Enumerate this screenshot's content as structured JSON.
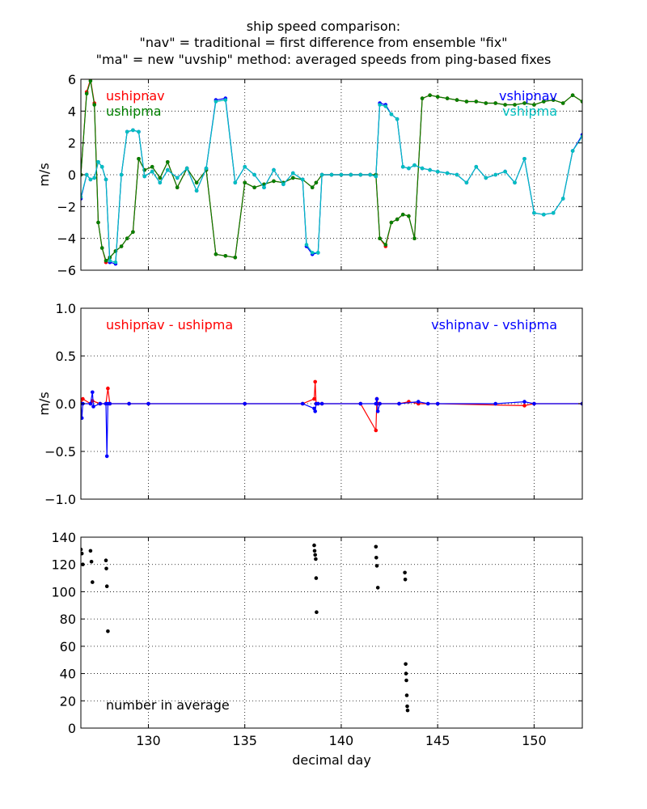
{
  "title_lines": [
    "ship speed comparison:",
    "\"nav\" = traditional = first difference from ensemble \"fix\"",
    "\"ma\" = new \"uvship\" method: averaged speeds from ping-based fixes"
  ],
  "xlabel": "decimal day",
  "colors": {
    "red": "#ff0000",
    "green": "#008000",
    "blue": "#0000ff",
    "cyan": "#00bfbf",
    "black": "#000000"
  },
  "chart_data": [
    {
      "type": "line",
      "ylabel": "m/s",
      "xlim": [
        126.5,
        152.5
      ],
      "ylim": [
        -6,
        6
      ],
      "xticks": [
        130,
        135,
        140,
        145,
        150
      ],
      "yticks": [
        -6,
        -4,
        -2,
        0,
        2,
        4,
        6
      ],
      "ytick_labels": [
        "−6",
        "−4",
        "−2",
        "0",
        "2",
        "4",
        "6"
      ],
      "grid": true,
      "annotations": [
        {
          "text": "ushipnav",
          "color": "#ff0000",
          "pos": "top-left"
        },
        {
          "text": "ushipma",
          "color": "#008000",
          "pos": "top-left"
        },
        {
          "text": "vshipnav",
          "color": "#0000ff",
          "pos": "top-right"
        },
        {
          "text": "vshipma",
          "color": "#00bfbf",
          "pos": "top-right"
        }
      ],
      "series": [
        {
          "name": "ushipnav",
          "color": "#ff0000",
          "x": [
            126.5,
            126.8,
            127.0,
            127.2,
            127.4,
            127.6,
            127.8,
            128.0,
            128.3,
            128.6,
            128.9,
            129.2,
            129.5,
            129.8,
            130.2,
            130.6,
            131.0,
            131.5,
            132.0,
            132.5,
            133.0,
            133.5,
            134.0,
            134.5,
            135.0,
            135.5,
            136.0,
            136.5,
            137.0,
            137.5,
            138.0,
            138.5,
            138.7,
            139.0,
            139.5,
            140.0,
            140.5,
            141.0,
            141.5,
            141.8,
            142.0,
            142.3,
            142.6,
            142.9,
            143.2,
            143.5,
            143.8,
            144.2,
            144.6,
            145.0,
            145.5,
            146.0,
            146.5,
            147.0,
            147.5,
            148.0,
            148.5,
            149.0,
            149.5,
            150.0,
            150.5,
            151.0,
            151.5,
            152.0,
            152.5
          ],
          "y": [
            0.0,
            5.2,
            6.0,
            4.5,
            -3.0,
            -4.6,
            -5.5,
            -5.2,
            -4.8,
            -4.5,
            -4.0,
            -3.6,
            1.0,
            0.3,
            0.5,
            -0.2,
            0.8,
            -0.8,
            0.4,
            -0.5,
            0.3,
            -5.0,
            -5.1,
            -5.2,
            -0.5,
            -0.8,
            -0.6,
            -0.4,
            -0.5,
            -0.2,
            -0.3,
            -0.8,
            -0.5,
            0.0,
            0.0,
            0.0,
            0.0,
            0.0,
            0.0,
            0.0,
            -4.0,
            -4.5,
            -3.0,
            -2.8,
            -2.5,
            -2.6,
            -4.0,
            4.8,
            5.0,
            4.9,
            4.8,
            4.7,
            4.6,
            4.6,
            4.5,
            4.5,
            4.4,
            4.4,
            4.5,
            4.4,
            4.6,
            4.7,
            4.5,
            5.0,
            4.6
          ]
        },
        {
          "name": "ushipma",
          "color": "#008000",
          "x": [
            126.5,
            126.8,
            127.0,
            127.2,
            127.4,
            127.6,
            127.8,
            128.0,
            128.3,
            128.6,
            128.9,
            129.2,
            129.5,
            129.8,
            130.2,
            130.6,
            131.0,
            131.5,
            132.0,
            132.5,
            133.0,
            133.5,
            134.0,
            134.5,
            135.0,
            135.5,
            136.0,
            136.5,
            137.0,
            137.5,
            138.0,
            138.5,
            138.7,
            139.0,
            139.5,
            140.0,
            140.5,
            141.0,
            141.5,
            141.8,
            142.0,
            142.3,
            142.6,
            142.9,
            143.2,
            143.5,
            143.8,
            144.2,
            144.6,
            145.0,
            145.5,
            146.0,
            146.5,
            147.0,
            147.5,
            148.0,
            148.5,
            149.0,
            149.5,
            150.0,
            150.5,
            151.0,
            151.5,
            152.0,
            152.5
          ],
          "y": [
            0.0,
            5.1,
            5.9,
            4.4,
            -3.0,
            -4.6,
            -5.4,
            -5.2,
            -4.8,
            -4.5,
            -4.0,
            -3.6,
            1.0,
            0.3,
            0.5,
            -0.2,
            0.8,
            -0.8,
            0.4,
            -0.5,
            0.3,
            -5.0,
            -5.1,
            -5.2,
            -0.5,
            -0.8,
            -0.6,
            -0.4,
            -0.5,
            -0.2,
            -0.3,
            -0.8,
            -0.5,
            0.0,
            0.0,
            0.0,
            0.0,
            0.0,
            0.0,
            0.0,
            -4.0,
            -4.4,
            -3.0,
            -2.8,
            -2.5,
            -2.6,
            -4.0,
            4.8,
            5.0,
            4.9,
            4.8,
            4.7,
            4.6,
            4.6,
            4.5,
            4.5,
            4.4,
            4.4,
            4.5,
            4.4,
            4.6,
            4.7,
            4.5,
            5.0,
            4.6
          ]
        },
        {
          "name": "vshipnav",
          "color": "#0000ff",
          "x": [
            126.5,
            126.8,
            127.0,
            127.2,
            127.4,
            127.6,
            127.8,
            128.0,
            128.3,
            128.6,
            128.9,
            129.2,
            129.5,
            129.8,
            130.2,
            130.6,
            131.0,
            131.5,
            132.0,
            132.5,
            133.0,
            133.5,
            134.0,
            134.5,
            135.0,
            135.5,
            136.0,
            136.5,
            137.0,
            137.5,
            138.0,
            138.2,
            138.5,
            138.8,
            139.0,
            139.5,
            140.0,
            140.5,
            141.0,
            141.5,
            141.8,
            142.0,
            142.3,
            142.6,
            142.9,
            143.2,
            143.5,
            143.8,
            144.2,
            144.6,
            145.0,
            145.5,
            146.0,
            146.5,
            147.0,
            147.5,
            148.0,
            148.5,
            149.0,
            149.5,
            150.0,
            150.5,
            151.0,
            151.5,
            152.0,
            152.5
          ],
          "y": [
            -1.5,
            0.0,
            -0.3,
            -0.2,
            0.8,
            0.5,
            -0.3,
            -5.5,
            -5.6,
            0.0,
            2.7,
            2.8,
            2.7,
            -0.1,
            0.2,
            -0.5,
            0.3,
            -0.2,
            0.4,
            -1.0,
            0.4,
            4.7,
            4.8,
            -0.5,
            0.5,
            0.0,
            -0.8,
            0.3,
            -0.6,
            0.1,
            -0.3,
            -4.5,
            -5.0,
            -4.9,
            0.0,
            0.0,
            0.0,
            0.0,
            0.0,
            0.0,
            -0.1,
            4.5,
            4.4,
            3.8,
            3.5,
            0.5,
            0.4,
            0.6,
            0.4,
            0.3,
            0.2,
            0.1,
            0.0,
            -0.5,
            0.5,
            -0.2,
            0.0,
            0.2,
            -0.5,
            1.0,
            -2.4,
            -2.5,
            -2.4,
            -1.5,
            1.5,
            2.5
          ]
        },
        {
          "name": "vshipma",
          "color": "#00bfbf",
          "x": [
            126.5,
            126.8,
            127.0,
            127.2,
            127.4,
            127.6,
            127.8,
            128.0,
            128.3,
            128.6,
            128.9,
            129.2,
            129.5,
            129.8,
            130.2,
            130.6,
            131.0,
            131.5,
            132.0,
            132.5,
            133.0,
            133.5,
            134.0,
            134.5,
            135.0,
            135.5,
            136.0,
            136.5,
            137.0,
            137.5,
            138.0,
            138.2,
            138.5,
            138.8,
            139.0,
            139.5,
            140.0,
            140.5,
            141.0,
            141.5,
            141.8,
            142.0,
            142.3,
            142.6,
            142.9,
            143.2,
            143.5,
            143.8,
            144.2,
            144.6,
            145.0,
            145.5,
            146.0,
            146.5,
            147.0,
            147.5,
            148.0,
            148.5,
            149.0,
            149.5,
            150.0,
            150.5,
            151.0,
            151.5,
            152.0,
            152.5
          ],
          "y": [
            -1.4,
            0.0,
            -0.3,
            -0.2,
            0.8,
            0.5,
            -0.3,
            -5.4,
            -5.5,
            0.0,
            2.7,
            2.8,
            2.7,
            -0.1,
            0.2,
            -0.5,
            0.3,
            -0.2,
            0.4,
            -1.0,
            0.4,
            4.6,
            4.7,
            -0.5,
            0.5,
            0.0,
            -0.8,
            0.3,
            -0.6,
            0.1,
            -0.3,
            -4.4,
            -4.9,
            -4.9,
            0.0,
            0.0,
            0.0,
            0.0,
            0.0,
            0.0,
            -0.1,
            4.4,
            4.3,
            3.8,
            3.5,
            0.5,
            0.4,
            0.6,
            0.4,
            0.3,
            0.2,
            0.1,
            0.0,
            -0.5,
            0.5,
            -0.2,
            0.0,
            0.2,
            -0.5,
            1.0,
            -2.4,
            -2.5,
            -2.4,
            -1.5,
            1.5,
            2.4
          ]
        }
      ]
    },
    {
      "type": "line",
      "ylabel": "m/s",
      "xlim": [
        126.5,
        152.5
      ],
      "ylim": [
        -1.0,
        1.0
      ],
      "xticks": [
        130,
        135,
        140,
        145,
        150
      ],
      "yticks": [
        -1.0,
        -0.5,
        0.0,
        0.5,
        1.0
      ],
      "ytick_labels": [
        "−1.0",
        "−0.5",
        "0.0",
        "0.5",
        "1.0"
      ],
      "grid": true,
      "annotations": [
        {
          "text": "ushipnav - ushipma",
          "color": "#ff0000",
          "pos": "top-left"
        },
        {
          "text": "vshipnav - vshipma",
          "color": "#0000ff",
          "pos": "top-right"
        }
      ],
      "series": [
        {
          "name": "ushipnav - ushipma",
          "color": "#ff0000",
          "x": [
            126.5,
            126.6,
            127.0,
            127.1,
            127.5,
            127.8,
            127.9,
            128.0,
            129.0,
            130.0,
            135.0,
            138.0,
            138.6,
            138.65,
            138.7,
            138.8,
            139.0,
            141.0,
            141.8,
            141.85,
            141.9,
            142.0,
            143.0,
            143.5,
            144.0,
            145.0,
            149.5,
            150.0,
            152.5
          ],
          "y": [
            0.0,
            0.05,
            0.0,
            0.03,
            0.0,
            0.0,
            0.16,
            0.0,
            0.0,
            0.0,
            0.0,
            0.0,
            0.05,
            0.23,
            0.0,
            0.0,
            0.0,
            0.0,
            -0.28,
            0.05,
            0.0,
            0.0,
            0.0,
            0.02,
            0.0,
            0.0,
            -0.02,
            0.0,
            0.0
          ]
        },
        {
          "name": "vshipnav - vshipma",
          "color": "#0000ff",
          "x": [
            126.5,
            126.55,
            126.6,
            127.0,
            127.1,
            127.15,
            127.5,
            127.8,
            127.85,
            127.9,
            128.0,
            129.0,
            130.0,
            135.0,
            138.0,
            138.6,
            138.65,
            138.7,
            138.8,
            139.0,
            141.0,
            141.8,
            141.85,
            141.9,
            142.0,
            143.0,
            144.0,
            144.5,
            145.0,
            148.0,
            149.5,
            150.0,
            152.5
          ],
          "y": [
            0.0,
            -0.15,
            0.0,
            0.0,
            0.12,
            -0.03,
            0.0,
            0.0,
            -0.55,
            0.0,
            0.0,
            0.0,
            0.0,
            0.0,
            0.0,
            -0.05,
            -0.08,
            0.0,
            0.0,
            0.0,
            0.0,
            0.0,
            0.05,
            -0.08,
            0.0,
            0.0,
            0.02,
            0.0,
            0.0,
            0.0,
            0.02,
            0.0,
            0.0
          ]
        }
      ]
    },
    {
      "type": "scatter",
      "ylabel": "",
      "xlim": [
        126.5,
        152.5
      ],
      "ylim": [
        0,
        140
      ],
      "xticks": [
        130,
        135,
        140,
        145,
        150
      ],
      "yticks": [
        0,
        20,
        40,
        60,
        80,
        100,
        120,
        140
      ],
      "ytick_labels": [
        "0",
        "20",
        "40",
        "60",
        "80",
        "100",
        "120",
        "140"
      ],
      "grid": true,
      "annotations": [
        {
          "text": "number in average",
          "color": "#000000",
          "pos": "bottom-left"
        }
      ],
      "series": [
        {
          "name": "number in average",
          "color": "#000000",
          "x": [
            126.5,
            126.55,
            126.6,
            127.0,
            127.05,
            127.1,
            127.8,
            127.82,
            127.85,
            127.9,
            138.6,
            138.62,
            138.65,
            138.68,
            138.7,
            138.72,
            141.8,
            141.82,
            141.85,
            141.9,
            143.3,
            143.32,
            143.34,
            143.36,
            143.38,
            143.4,
            143.42,
            143.44
          ],
          "y": [
            131,
            128,
            120,
            130,
            122,
            107,
            123,
            117,
            104,
            71,
            134,
            130,
            127,
            124,
            110,
            85,
            133,
            125,
            119,
            103,
            114,
            109,
            47,
            40,
            35,
            24,
            16,
            13
          ]
        }
      ]
    }
  ]
}
